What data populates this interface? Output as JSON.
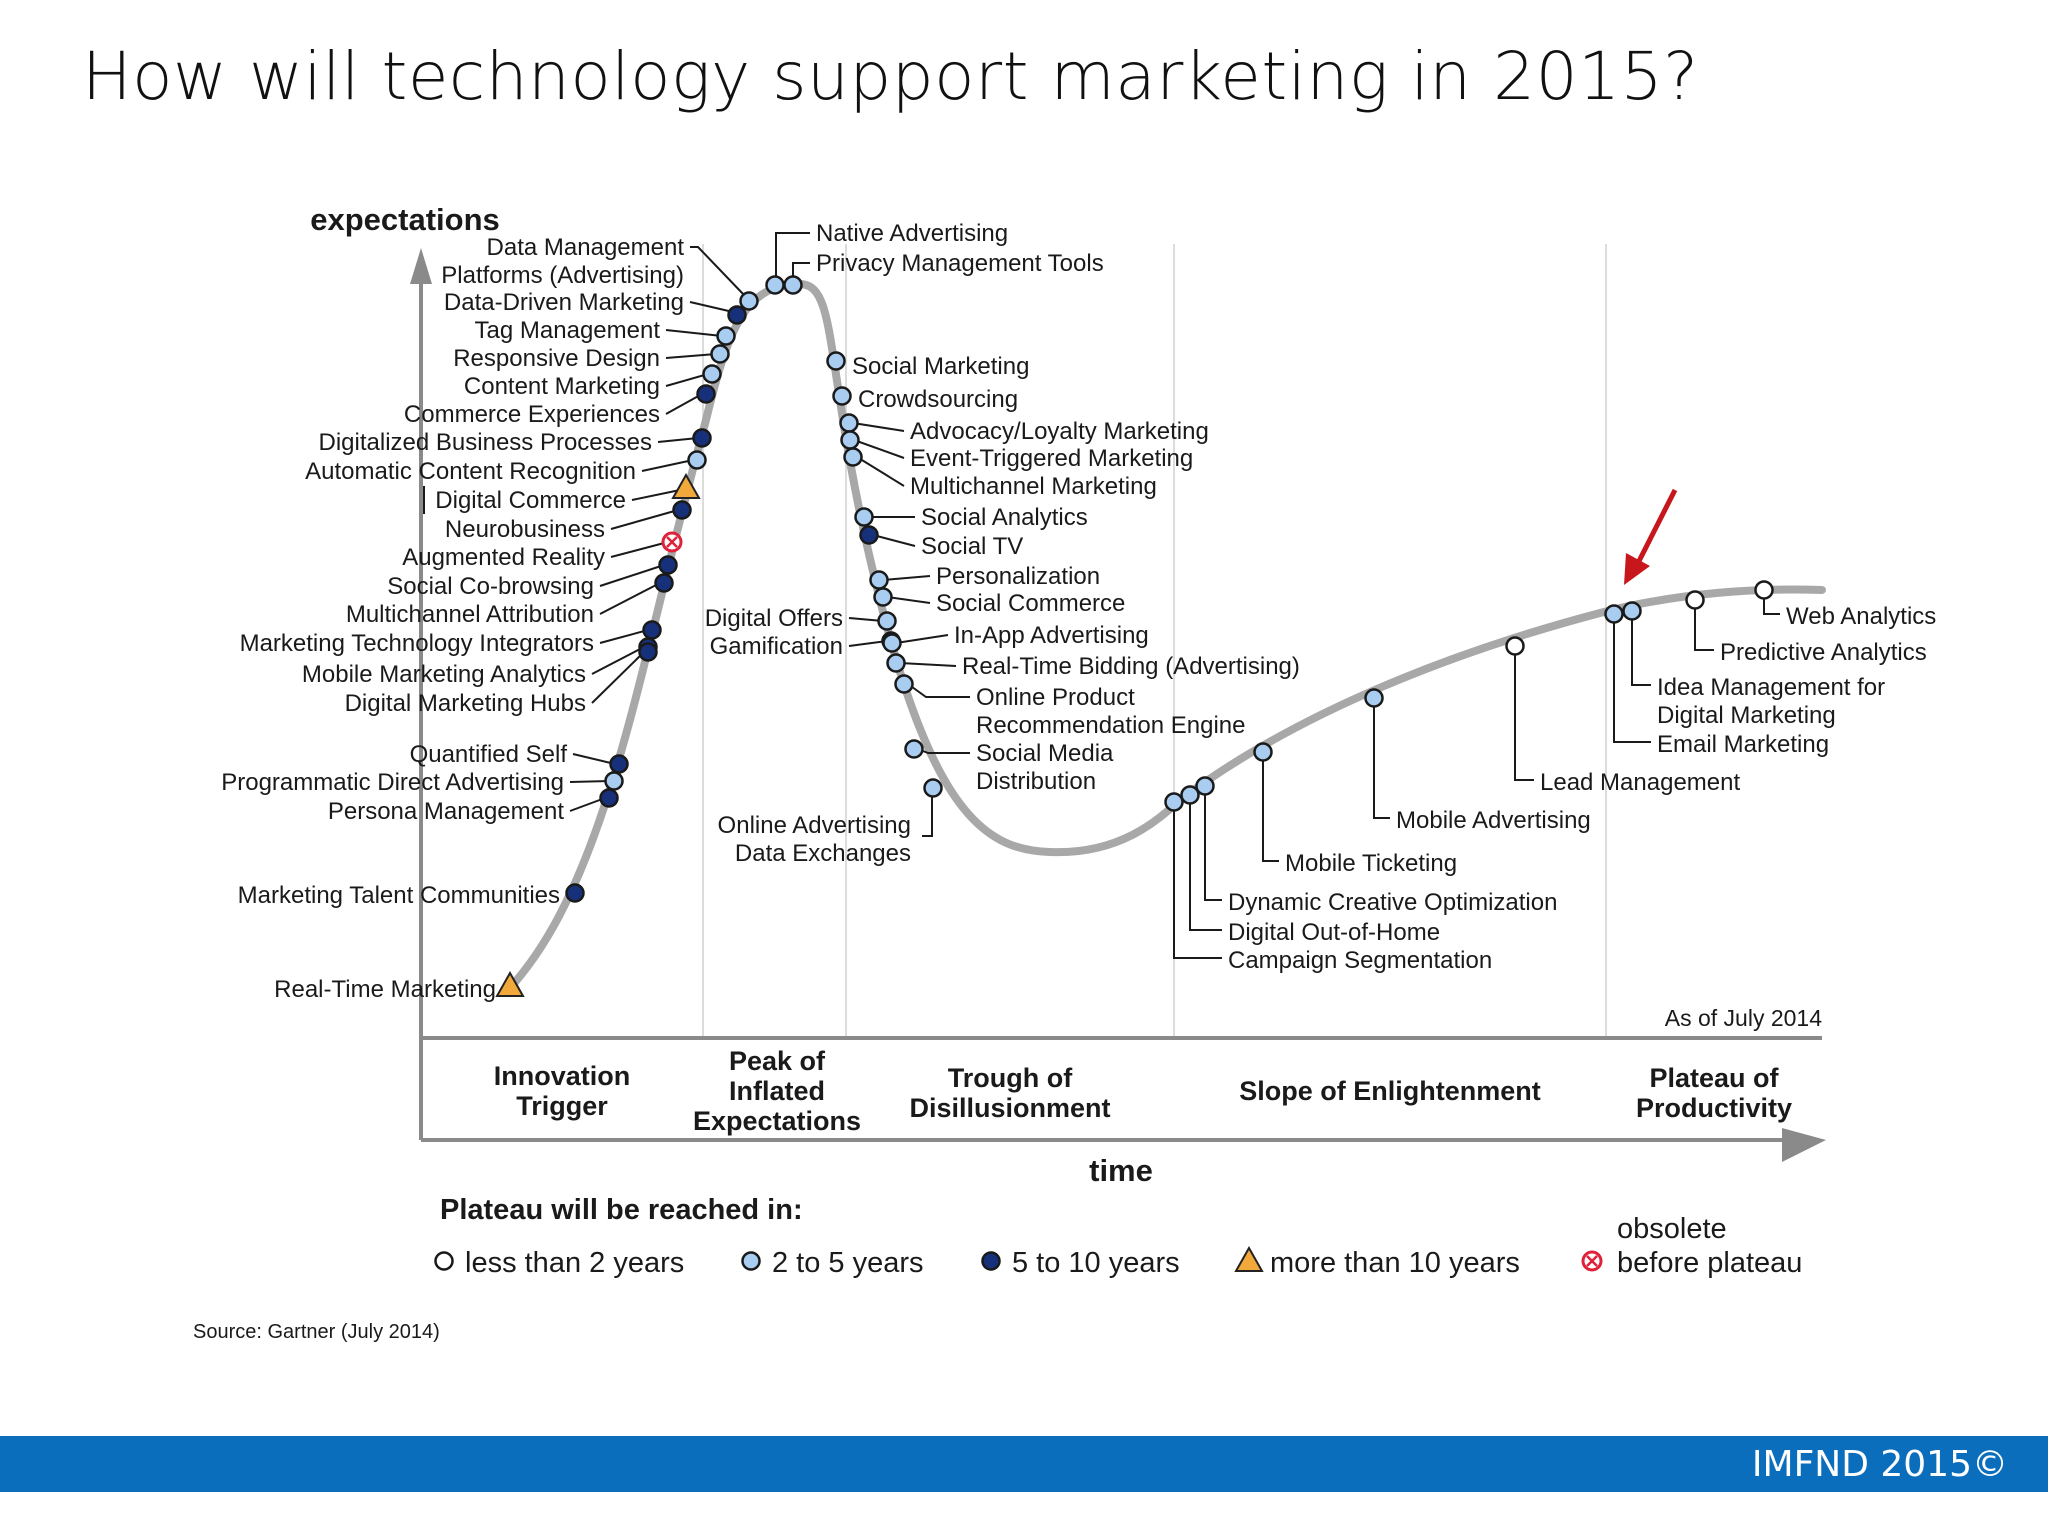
{
  "slide": {
    "title": "How will technology support marketing in 2015?"
  },
  "footer": {
    "text": "IMFND 2015©"
  },
  "chart": {
    "y_axis_label": "expectations",
    "x_axis_label": "time",
    "as_of": "As of July 2014",
    "source": "Source: Gartner (July 2014)",
    "phases": [
      {
        "id": "innovation-trigger",
        "lines": [
          "Innovation",
          "Trigger"
        ]
      },
      {
        "id": "peak",
        "lines": [
          "Peak of",
          "Inflated",
          "Expectations"
        ]
      },
      {
        "id": "trough",
        "lines": [
          "Trough of",
          "Disillusionment"
        ]
      },
      {
        "id": "slope",
        "lines": [
          "Slope of Enlightenment"
        ]
      },
      {
        "id": "plateau",
        "lines": [
          "Plateau of",
          "Productivity"
        ]
      }
    ],
    "legend": {
      "title": "Plateau will be reached in:",
      "items": [
        {
          "symbol": "white",
          "label": "less than 2 years"
        },
        {
          "symbol": "light",
          "label": "2 to 5 years"
        },
        {
          "symbol": "dark",
          "label": "5 to 10 years"
        },
        {
          "symbol": "triangle",
          "label": "more than 10 years"
        },
        {
          "symbol": "obsolete",
          "label": "obsolete",
          "label2": "before plateau"
        }
      ]
    },
    "colors": {
      "curve": "#a8a8a8",
      "white": "#ffffff",
      "light": "#a9cdf0",
      "dark": "#17307a",
      "triangle": "#f2a93b",
      "obsolete": "#e0213a",
      "arrow": "#c8161d"
    },
    "highlighted": "Email Marketing",
    "technologies": [
      {
        "name": "Data Management",
        "name2": "Platforms (Advertising)",
        "phase": "Peak of Inflated Expectations",
        "plateau": "2 to 5 years"
      },
      {
        "name": "Data-Driven Marketing",
        "phase": "Peak of Inflated Expectations",
        "plateau": "5 to 10 years"
      },
      {
        "name": "Tag Management",
        "phase": "Peak of Inflated Expectations",
        "plateau": "2 to 5 years"
      },
      {
        "name": "Responsive Design",
        "phase": "Peak of Inflated Expectations",
        "plateau": "2 to 5 years"
      },
      {
        "name": "Content Marketing",
        "phase": "Peak of Inflated Expectations",
        "plateau": "2 to 5 years"
      },
      {
        "name": "Commerce Experiences",
        "phase": "Innovation Trigger",
        "plateau": "5 to 10 years"
      },
      {
        "name": "Digitalized Business Processes",
        "phase": "Innovation Trigger",
        "plateau": "5 to 10 years"
      },
      {
        "name": "Automatic Content Recognition",
        "phase": "Innovation Trigger",
        "plateau": "2 to 5 years"
      },
      {
        "name": "Digital Commerce",
        "phase": "Innovation Trigger",
        "plateau": "more than 10 years"
      },
      {
        "name": "Neurobusiness",
        "phase": "Innovation Trigger",
        "plateau": "5 to 10 years"
      },
      {
        "name": "Augmented Reality",
        "phase": "Innovation Trigger",
        "plateau": "obsolete before plateau"
      },
      {
        "name": "Social Co-browsing",
        "phase": "Innovation Trigger",
        "plateau": "5 to 10 years"
      },
      {
        "name": "Multichannel Attribution",
        "phase": "Innovation Trigger",
        "plateau": "5 to 10 years"
      },
      {
        "name": "Marketing Technology Integrators",
        "phase": "Innovation Trigger",
        "plateau": "5 to 10 years"
      },
      {
        "name": "Mobile Marketing Analytics",
        "phase": "Innovation Trigger",
        "plateau": "5 to 10 years"
      },
      {
        "name": "Digital Marketing Hubs",
        "phase": "Innovation Trigger",
        "plateau": "5 to 10 years"
      },
      {
        "name": "Quantified Self",
        "phase": "Innovation Trigger",
        "plateau": "5 to 10 years"
      },
      {
        "name": "Programmatic Direct Advertising",
        "phase": "Innovation Trigger",
        "plateau": "2 to 5 years"
      },
      {
        "name": "Persona Management",
        "phase": "Innovation Trigger",
        "plateau": "5 to 10 years"
      },
      {
        "name": "Marketing Talent Communities",
        "phase": "Innovation Trigger",
        "plateau": "5 to 10 years"
      },
      {
        "name": "Real-Time Marketing",
        "phase": "Innovation Trigger",
        "plateau": "more than 10 years"
      },
      {
        "name": "Native Advertising",
        "phase": "Peak of Inflated Expectations",
        "plateau": "2 to 5 years"
      },
      {
        "name": "Privacy Management Tools",
        "phase": "Peak of Inflated Expectations",
        "plateau": "2 to 5 years"
      },
      {
        "name": "Social Marketing",
        "phase": "Trough of Disillusionment",
        "plateau": "2 to 5 years"
      },
      {
        "name": "Crowdsourcing",
        "phase": "Trough of Disillusionment",
        "plateau": "2 to 5 years"
      },
      {
        "name": "Advocacy/Loyalty Marketing",
        "phase": "Trough of Disillusionment",
        "plateau": "2 to 5 years"
      },
      {
        "name": "Event-Triggered Marketing",
        "phase": "Trough of Disillusionment",
        "plateau": "2 to 5 years"
      },
      {
        "name": "Multichannel Marketing",
        "phase": "Trough of Disillusionment",
        "plateau": "2 to 5 years"
      },
      {
        "name": "Social Analytics",
        "phase": "Trough of Disillusionment",
        "plateau": "2 to 5 years"
      },
      {
        "name": "Social TV",
        "phase": "Trough of Disillusionment",
        "plateau": "5 to 10 years"
      },
      {
        "name": "Personalization",
        "phase": "Trough of Disillusionment",
        "plateau": "2 to 5 years"
      },
      {
        "name": "Social Commerce",
        "phase": "Trough of Disillusionment",
        "plateau": "2 to 5 years"
      },
      {
        "name": "Digital Offers",
        "phase": "Trough of Disillusionment",
        "plateau": "2 to 5 years"
      },
      {
        "name": "Gamification",
        "phase": "Trough of Disillusionment",
        "plateau": "5 to 10 years"
      },
      {
        "name": "In-App Advertising",
        "phase": "Trough of Disillusionment",
        "plateau": "2 to 5 years"
      },
      {
        "name": "Real-Time Bidding (Advertising)",
        "phase": "Trough of Disillusionment",
        "plateau": "2 to 5 years"
      },
      {
        "name": "Online Product",
        "name2": "Recommendation Engine",
        "phase": "Trough of Disillusionment",
        "plateau": "2 to 5 years"
      },
      {
        "name": "Social Media",
        "name2": "Distribution",
        "phase": "Trough of Disillusionment",
        "plateau": "2 to 5 years"
      },
      {
        "name": "Online Advertising",
        "name2": "Data Exchanges",
        "phase": "Trough of Disillusionment",
        "plateau": "2 to 5 years"
      },
      {
        "name": "Campaign Segmentation",
        "phase": "Slope of Enlightenment",
        "plateau": "2 to 5 years"
      },
      {
        "name": "Digital Out-of-Home",
        "phase": "Slope of Enlightenment",
        "plateau": "2 to 5 years"
      },
      {
        "name": "Dynamic Creative Optimization",
        "phase": "Slope of Enlightenment",
        "plateau": "2 to 5 years"
      },
      {
        "name": "Mobile Ticketing",
        "phase": "Slope of Enlightenment",
        "plateau": "2 to 5 years"
      },
      {
        "name": "Mobile Advertising",
        "phase": "Slope of Enlightenment",
        "plateau": "2 to 5 years"
      },
      {
        "name": "Lead Management",
        "phase": "Slope of Enlightenment",
        "plateau": "less than 2 years"
      },
      {
        "name": "Email Marketing",
        "phase": "Plateau of Productivity",
        "plateau": "2 to 5 years"
      },
      {
        "name": "Idea Management for",
        "name2": "Digital Marketing",
        "phase": "Plateau of Productivity",
        "plateau": "2 to 5 years"
      },
      {
        "name": "Predictive Analytics",
        "phase": "Plateau of Productivity",
        "plateau": "less than 2 years"
      },
      {
        "name": "Web Analytics",
        "phase": "Plateau of Productivity",
        "plateau": "less than 2 years"
      }
    ]
  }
}
